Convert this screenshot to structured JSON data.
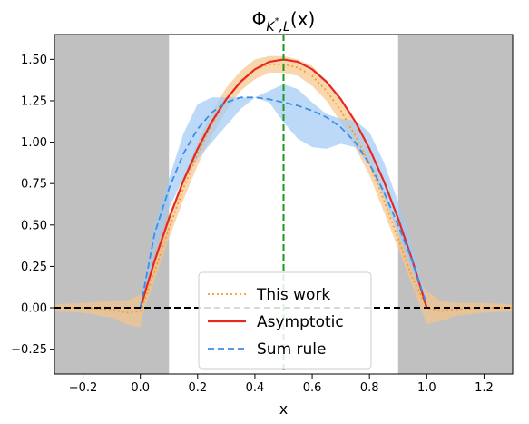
{
  "chart_data": {
    "type": "line",
    "title": "Φ_{K*,L}(x)",
    "xlabel": "x",
    "ylabel": "",
    "xlim": [
      -0.3,
      1.3
    ],
    "ylim": [
      -0.4,
      1.65
    ],
    "xticks": [
      "−0.2",
      "0.0",
      "0.2",
      "0.4",
      "0.6",
      "0.8",
      "1.0",
      "1.2"
    ],
    "xtick_values": [
      -0.2,
      0.0,
      0.2,
      0.4,
      0.6,
      0.8,
      1.0,
      1.2
    ],
    "yticks": [
      "−0.25",
      "0.00",
      "0.25",
      "0.50",
      "0.75",
      "1.00",
      "1.25",
      "1.50"
    ],
    "ytick_values": [
      -0.25,
      0.0,
      0.25,
      0.5,
      0.75,
      1.0,
      1.25,
      1.5
    ],
    "shaded_regions": [
      {
        "x_from": -0.3,
        "x_to": 0.1,
        "color": "#c0c0c0"
      },
      {
        "x_from": 0.9,
        "x_to": 1.3,
        "color": "#c0c0c0"
      }
    ],
    "vertical_line": {
      "x": 0.5,
      "color": "#1a9a1a",
      "style": "dashed"
    },
    "horizontal_line": {
      "y": 0.0,
      "color": "#000000",
      "style": "dashed"
    },
    "series": [
      {
        "name": "This work",
        "color": "#ff9a1e",
        "style": "dotted",
        "band_color": "#f5c58c",
        "x": [
          -0.3,
          -0.2,
          -0.1,
          -0.05,
          0.0,
          0.01,
          0.05,
          0.1,
          0.15,
          0.2,
          0.25,
          0.3,
          0.35,
          0.4,
          0.45,
          0.5,
          0.55,
          0.6,
          0.65,
          0.7,
          0.75,
          0.8,
          0.85,
          0.9,
          0.95,
          1.0,
          1.05,
          1.1,
          1.2,
          1.3
        ],
        "values": [
          0.0,
          0.0,
          -0.01,
          -0.03,
          -0.02,
          0.02,
          0.22,
          0.48,
          0.72,
          0.93,
          1.11,
          1.26,
          1.37,
          1.44,
          1.47,
          1.47,
          1.45,
          1.4,
          1.31,
          1.19,
          1.04,
          0.87,
          0.65,
          0.42,
          0.18,
          0.0,
          -0.02,
          -0.01,
          0.0,
          0.0
        ],
        "band_halfwidth": [
          0.02,
          0.03,
          0.05,
          0.07,
          0.1,
          0.05,
          0.05,
          0.06,
          0.07,
          0.07,
          0.07,
          0.07,
          0.06,
          0.06,
          0.05,
          0.05,
          0.05,
          0.06,
          0.06,
          0.07,
          0.07,
          0.07,
          0.07,
          0.06,
          0.05,
          0.1,
          0.06,
          0.04,
          0.03,
          0.02
        ]
      },
      {
        "name": "Asymptotic",
        "color": "#e8281e",
        "style": "solid",
        "x": [
          0.0,
          0.05,
          0.1,
          0.15,
          0.2,
          0.25,
          0.3,
          0.35,
          0.4,
          0.45,
          0.5,
          0.55,
          0.6,
          0.65,
          0.7,
          0.75,
          0.8,
          0.85,
          0.9,
          0.95,
          1.0
        ],
        "values": [
          0.0,
          0.285,
          0.54,
          0.765,
          0.96,
          1.125,
          1.26,
          1.365,
          1.44,
          1.485,
          1.5,
          1.485,
          1.44,
          1.365,
          1.26,
          1.125,
          0.96,
          0.765,
          0.54,
          0.285,
          0.0
        ]
      },
      {
        "name": "Sum rule",
        "color": "#3c8ee6",
        "style": "dashed",
        "band_color": "#9fcaf5",
        "x": [
          0.0,
          0.05,
          0.1,
          0.15,
          0.2,
          0.25,
          0.3,
          0.35,
          0.4,
          0.45,
          0.5,
          0.55,
          0.6,
          0.65,
          0.7,
          0.75,
          0.8,
          0.85,
          0.9,
          0.95,
          1.0
        ],
        "values": [
          0.0,
          0.45,
          0.72,
          0.93,
          1.08,
          1.18,
          1.24,
          1.27,
          1.27,
          1.26,
          1.24,
          1.22,
          1.19,
          1.15,
          1.09,
          1.0,
          0.87,
          0.7,
          0.5,
          0.28,
          0.02
        ],
        "band_low": [
          0.0,
          0.35,
          0.6,
          0.78,
          0.9,
          1.0,
          1.1,
          1.2,
          1.27,
          1.24,
          1.12,
          1.02,
          0.97,
          0.96,
          0.99,
          0.97,
          0.86,
          0.67,
          0.45,
          0.22,
          0.01
        ],
        "band_high": [
          0.02,
          0.5,
          0.78,
          1.05,
          1.23,
          1.27,
          1.27,
          1.27,
          1.27,
          1.31,
          1.35,
          1.32,
          1.24,
          1.17,
          1.14,
          1.13,
          1.06,
          0.88,
          0.64,
          0.36,
          0.04
        ]
      }
    ],
    "legend": {
      "position": "bottom-center",
      "entries": [
        "This work",
        "Asymptotic",
        "Sum rule"
      ]
    },
    "grid": false
  }
}
